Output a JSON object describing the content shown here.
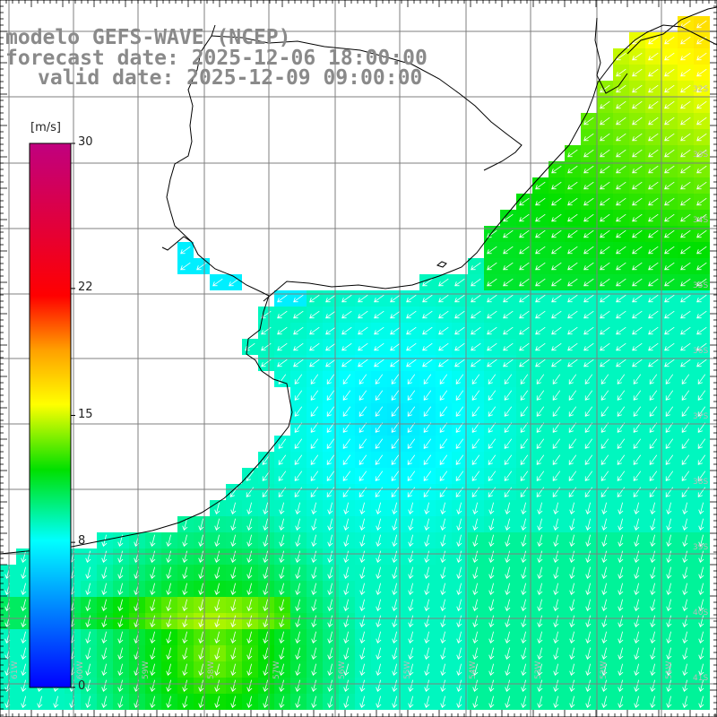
{
  "title": {
    "line1": "modelo GEFS-WAVE (NCEP)",
    "line2": "forecast date: 2025-12-06 18:00:00",
    "line3": "valid date: 2025-12-09 09:00:00"
  },
  "colorbar": {
    "unit": "[m/s]",
    "ticks": [
      "30",
      "22",
      "15",
      "8",
      "0"
    ],
    "tick_values": [
      30,
      22,
      15,
      8,
      0
    ],
    "min": 0,
    "max": 30
  },
  "lat_labels": [
    "32S",
    "33S",
    "34S",
    "35S",
    "36S",
    "37S",
    "38S",
    "39S",
    "40S",
    "41S"
  ],
  "lon_labels": [
    "61W",
    "60W",
    "59W",
    "58W",
    "57W",
    "56W",
    "55W",
    "54W",
    "53W",
    "52W",
    "51W"
  ],
  "colors": {
    "land": "#ffffff",
    "coast": "#000000",
    "grid": "#7f7f7f",
    "arrow": "#ffffff"
  }
}
